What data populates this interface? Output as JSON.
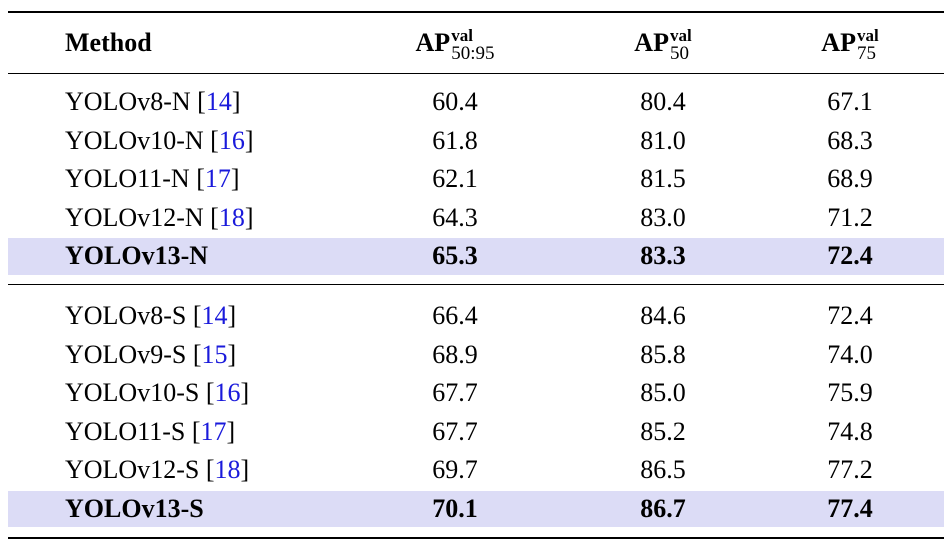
{
  "header": [
    {
      "main": "Method"
    },
    {
      "main": "AP",
      "sup": "val",
      "sub": "50:95"
    },
    {
      "main": "AP",
      "sup": "val",
      "sub": "50"
    },
    {
      "main": "AP",
      "sup": "val",
      "sub": "75"
    }
  ],
  "groups": [
    {
      "rows": [
        {
          "method": "YOLOv8-N",
          "ref": [
            "[",
            "14",
            "]"
          ],
          "values": [
            "60.4",
            "80.4",
            "67.1"
          ],
          "highlight": false
        },
        {
          "method": "YOLOv10-N",
          "ref": [
            "[",
            "16",
            "]"
          ],
          "values": [
            "61.8",
            "81.0",
            "68.3"
          ],
          "highlight": false
        },
        {
          "method": "YOLO11-N",
          "ref": [
            "[",
            "17",
            "]"
          ],
          "values": [
            "62.1",
            "81.5",
            "68.9"
          ],
          "highlight": false
        },
        {
          "method": "YOLOv12-N",
          "ref": [
            "[",
            "18",
            "]"
          ],
          "values": [
            "64.3",
            "83.0",
            "71.2"
          ],
          "highlight": false
        },
        {
          "method": "YOLOv13-N",
          "values": [
            "65.3",
            "83.3",
            "72.4"
          ],
          "highlight": true
        }
      ]
    },
    {
      "rows": [
        {
          "method": "YOLOv8-S",
          "ref": [
            "[",
            "14",
            "]"
          ],
          "values": [
            "66.4",
            "84.6",
            "72.4"
          ],
          "highlight": false
        },
        {
          "method": "YOLOv9-S",
          "ref": [
            "[",
            "15",
            "]"
          ],
          "values": [
            "68.9",
            "85.8",
            "74.0"
          ],
          "highlight": false
        },
        {
          "method": "YOLOv10-S",
          "ref": [
            "[",
            "16",
            "]"
          ],
          "values": [
            "67.7",
            "85.0",
            "75.9"
          ],
          "highlight": false
        },
        {
          "method": "YOLO11-S",
          "ref": [
            "[",
            "17",
            "]"
          ],
          "values": [
            "67.7",
            "85.2",
            "74.8"
          ],
          "highlight": false
        },
        {
          "method": "YOLOv12-S",
          "ref": [
            "[",
            "18",
            "]"
          ],
          "values": [
            "69.7",
            "86.5",
            "77.2"
          ],
          "highlight": false
        },
        {
          "method": "YOLOv13-S",
          "values": [
            "70.1",
            "86.7",
            "77.4"
          ],
          "highlight": true
        }
      ]
    }
  ]
}
